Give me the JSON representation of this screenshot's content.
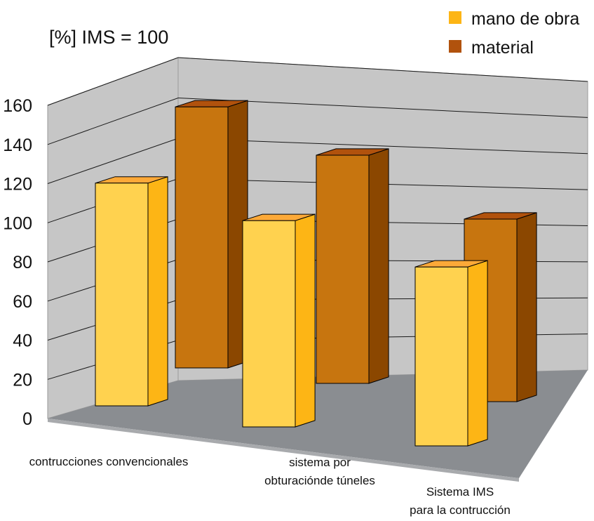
{
  "chart_data": {
    "type": "bar",
    "title": "[%] IMS = 100",
    "categories": [
      [
        "contrucciones convencionales"
      ],
      [
        "sistema por",
        "obturacióndе túneles"
      ],
      [
        "Sistema IMS",
        "para la contrucción"
      ]
    ],
    "series": [
      {
        "name": "mano de obra",
        "values": [
          122,
          113,
          98
        ]
      },
      {
        "name": "material",
        "values": [
          143,
          125,
          100
        ]
      }
    ],
    "ylim": [
      0,
      160
    ],
    "yticks": [
      0,
      20,
      40,
      60,
      80,
      100,
      120,
      140,
      160
    ],
    "xlabel": "",
    "ylabel": "",
    "grid": true,
    "legend": "top-right",
    "colors": {
      "mano de obra": {
        "front": "#FFD24F",
        "side": "#FDB515",
        "top": "#FCA938"
      },
      "material": {
        "front": "#C7750F",
        "side": "#8B4700",
        "top": "#B1520D"
      },
      "wall": "#C6C6C6",
      "floor": "#8A8D91",
      "floor_side": "#A8AAAD",
      "gridline": "#1a1a1a"
    }
  }
}
